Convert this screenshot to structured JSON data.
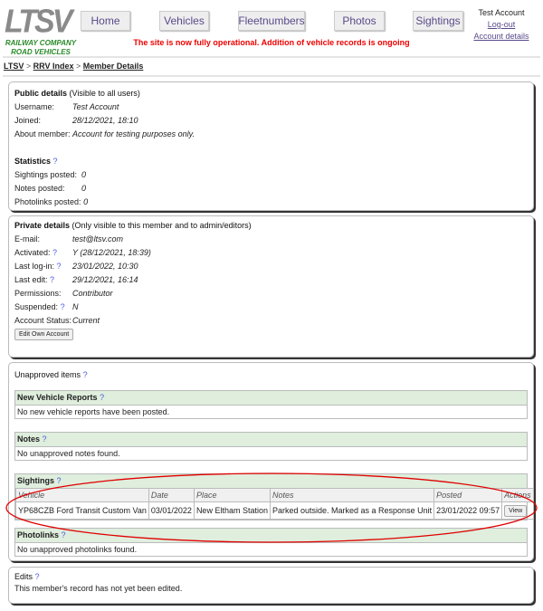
{
  "header": {
    "logo_text": "LTSV",
    "logo_sub1": "RAILWAY COMPANY",
    "logo_sub2": "ROAD VEHICLES",
    "nav": [
      "Home",
      "Vehicles",
      "Fleetnumbers",
      "Photos",
      "Sightings"
    ],
    "user": "Test Account",
    "logout": "Log-out",
    "account": "Account details",
    "message": "The site is now fully operational. Addition of vehicle records is ongoing"
  },
  "breadcrumb": [
    "LTSV",
    "RRV Index",
    "Member Details"
  ],
  "public": {
    "title": "Public details",
    "note": "(Visible to all users)",
    "rows": [
      [
        "Username:",
        "Test Account"
      ],
      [
        "Joined:",
        "28/12/2021, 18:10"
      ],
      [
        "About member:",
        "Account for testing purposes only."
      ]
    ],
    "stats_title": "Statistics",
    "stats": [
      [
        "Sightings posted:",
        "0"
      ],
      [
        "Notes posted:",
        "0"
      ],
      [
        "Photolinks posted:",
        "0"
      ]
    ]
  },
  "private": {
    "title": "Private details",
    "note": "(Only visible to this member and to admin/editors)",
    "rows": [
      [
        "E-mail:",
        "test@ltsv.com",
        false
      ],
      [
        "Activated:",
        "Y (28/12/2021, 18:39)",
        true
      ],
      [
        "Last log-in:",
        "23/01/2022, 10:30",
        true
      ],
      [
        "Last edit:",
        "29/12/2021, 16:14",
        true
      ],
      [
        "Permissions:",
        "Contributor",
        false
      ],
      [
        "Suspended:",
        "N",
        true
      ],
      [
        "Account Status:",
        "Current",
        false
      ]
    ],
    "edit_button": "Edit Own Account"
  },
  "unapproved": {
    "title": "Unapproved items",
    "vehicle_reports": {
      "title": "New Vehicle Reports",
      "text": "No new vehicle reports have been posted."
    },
    "notes": {
      "title": "Notes",
      "text": "No unapproved notes found."
    },
    "sightings": {
      "title": "Sightings",
      "columns": [
        "Vehicle",
        "Date",
        "Place",
        "Notes",
        "Posted",
        "Actions"
      ],
      "rows": [
        [
          "YP68CZB Ford Transit Custom Van",
          "03/01/2022",
          "New Eltham Station",
          "Parked outside. Marked as a Response Unit",
          "23/01/2022 09:57"
        ]
      ],
      "view": "View"
    },
    "photolinks": {
      "title": "Photolinks",
      "text": "No unapproved photolinks found."
    }
  },
  "edits": {
    "title": "Edits",
    "text": "This member's record has not yet been edited."
  },
  "help": "?",
  "annotation_color": "#e00000"
}
